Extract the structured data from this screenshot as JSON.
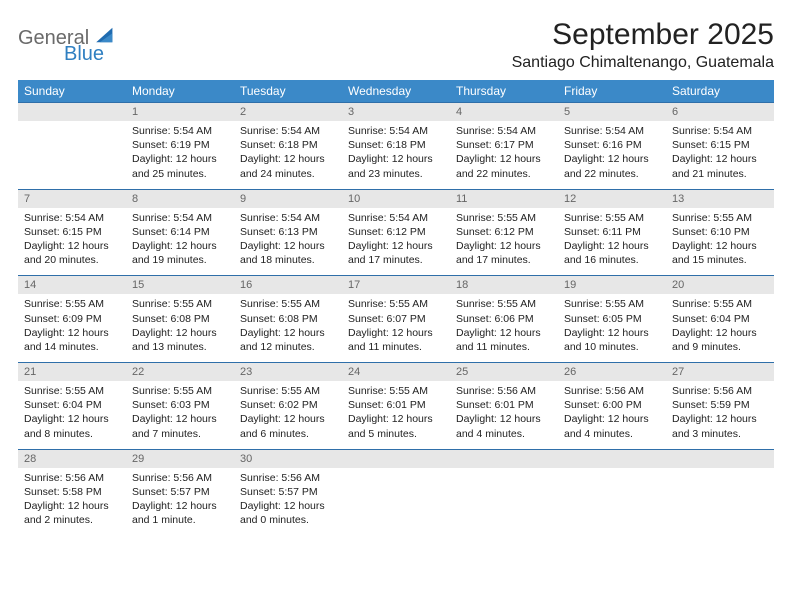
{
  "brand": {
    "general": "General",
    "blue": "Blue"
  },
  "title": "September 2025",
  "location": "Santiago Chimaltenango, Guatemala",
  "colors": {
    "header_bg": "#3b89c8",
    "header_text": "#ffffff",
    "daynum_bg": "#e7e7e7",
    "daynum_text": "#666666",
    "row_border": "#2f6fa9",
    "logo_gray": "#6a6a6a",
    "logo_blue": "#2f7fc1",
    "body_text": "#222222",
    "background": "#ffffff"
  },
  "columns": [
    "Sunday",
    "Monday",
    "Tuesday",
    "Wednesday",
    "Thursday",
    "Friday",
    "Saturday"
  ],
  "weeks": [
    [
      null,
      {
        "n": "1",
        "sr": "Sunrise: 5:54 AM",
        "ss": "Sunset: 6:19 PM",
        "d1": "Daylight: 12 hours",
        "d2": "and 25 minutes."
      },
      {
        "n": "2",
        "sr": "Sunrise: 5:54 AM",
        "ss": "Sunset: 6:18 PM",
        "d1": "Daylight: 12 hours",
        "d2": "and 24 minutes."
      },
      {
        "n": "3",
        "sr": "Sunrise: 5:54 AM",
        "ss": "Sunset: 6:18 PM",
        "d1": "Daylight: 12 hours",
        "d2": "and 23 minutes."
      },
      {
        "n": "4",
        "sr": "Sunrise: 5:54 AM",
        "ss": "Sunset: 6:17 PM",
        "d1": "Daylight: 12 hours",
        "d2": "and 22 minutes."
      },
      {
        "n": "5",
        "sr": "Sunrise: 5:54 AM",
        "ss": "Sunset: 6:16 PM",
        "d1": "Daylight: 12 hours",
        "d2": "and 22 minutes."
      },
      {
        "n": "6",
        "sr": "Sunrise: 5:54 AM",
        "ss": "Sunset: 6:15 PM",
        "d1": "Daylight: 12 hours",
        "d2": "and 21 minutes."
      }
    ],
    [
      {
        "n": "7",
        "sr": "Sunrise: 5:54 AM",
        "ss": "Sunset: 6:15 PM",
        "d1": "Daylight: 12 hours",
        "d2": "and 20 minutes."
      },
      {
        "n": "8",
        "sr": "Sunrise: 5:54 AM",
        "ss": "Sunset: 6:14 PM",
        "d1": "Daylight: 12 hours",
        "d2": "and 19 minutes."
      },
      {
        "n": "9",
        "sr": "Sunrise: 5:54 AM",
        "ss": "Sunset: 6:13 PM",
        "d1": "Daylight: 12 hours",
        "d2": "and 18 minutes."
      },
      {
        "n": "10",
        "sr": "Sunrise: 5:54 AM",
        "ss": "Sunset: 6:12 PM",
        "d1": "Daylight: 12 hours",
        "d2": "and 17 minutes."
      },
      {
        "n": "11",
        "sr": "Sunrise: 5:55 AM",
        "ss": "Sunset: 6:12 PM",
        "d1": "Daylight: 12 hours",
        "d2": "and 17 minutes."
      },
      {
        "n": "12",
        "sr": "Sunrise: 5:55 AM",
        "ss": "Sunset: 6:11 PM",
        "d1": "Daylight: 12 hours",
        "d2": "and 16 minutes."
      },
      {
        "n": "13",
        "sr": "Sunrise: 5:55 AM",
        "ss": "Sunset: 6:10 PM",
        "d1": "Daylight: 12 hours",
        "d2": "and 15 minutes."
      }
    ],
    [
      {
        "n": "14",
        "sr": "Sunrise: 5:55 AM",
        "ss": "Sunset: 6:09 PM",
        "d1": "Daylight: 12 hours",
        "d2": "and 14 minutes."
      },
      {
        "n": "15",
        "sr": "Sunrise: 5:55 AM",
        "ss": "Sunset: 6:08 PM",
        "d1": "Daylight: 12 hours",
        "d2": "and 13 minutes."
      },
      {
        "n": "16",
        "sr": "Sunrise: 5:55 AM",
        "ss": "Sunset: 6:08 PM",
        "d1": "Daylight: 12 hours",
        "d2": "and 12 minutes."
      },
      {
        "n": "17",
        "sr": "Sunrise: 5:55 AM",
        "ss": "Sunset: 6:07 PM",
        "d1": "Daylight: 12 hours",
        "d2": "and 11 minutes."
      },
      {
        "n": "18",
        "sr": "Sunrise: 5:55 AM",
        "ss": "Sunset: 6:06 PM",
        "d1": "Daylight: 12 hours",
        "d2": "and 11 minutes."
      },
      {
        "n": "19",
        "sr": "Sunrise: 5:55 AM",
        "ss": "Sunset: 6:05 PM",
        "d1": "Daylight: 12 hours",
        "d2": "and 10 minutes."
      },
      {
        "n": "20",
        "sr": "Sunrise: 5:55 AM",
        "ss": "Sunset: 6:04 PM",
        "d1": "Daylight: 12 hours",
        "d2": "and 9 minutes."
      }
    ],
    [
      {
        "n": "21",
        "sr": "Sunrise: 5:55 AM",
        "ss": "Sunset: 6:04 PM",
        "d1": "Daylight: 12 hours",
        "d2": "and 8 minutes."
      },
      {
        "n": "22",
        "sr": "Sunrise: 5:55 AM",
        "ss": "Sunset: 6:03 PM",
        "d1": "Daylight: 12 hours",
        "d2": "and 7 minutes."
      },
      {
        "n": "23",
        "sr": "Sunrise: 5:55 AM",
        "ss": "Sunset: 6:02 PM",
        "d1": "Daylight: 12 hours",
        "d2": "and 6 minutes."
      },
      {
        "n": "24",
        "sr": "Sunrise: 5:55 AM",
        "ss": "Sunset: 6:01 PM",
        "d1": "Daylight: 12 hours",
        "d2": "and 5 minutes."
      },
      {
        "n": "25",
        "sr": "Sunrise: 5:56 AM",
        "ss": "Sunset: 6:01 PM",
        "d1": "Daylight: 12 hours",
        "d2": "and 4 minutes."
      },
      {
        "n": "26",
        "sr": "Sunrise: 5:56 AM",
        "ss": "Sunset: 6:00 PM",
        "d1": "Daylight: 12 hours",
        "d2": "and 4 minutes."
      },
      {
        "n": "27",
        "sr": "Sunrise: 5:56 AM",
        "ss": "Sunset: 5:59 PM",
        "d1": "Daylight: 12 hours",
        "d2": "and 3 minutes."
      }
    ],
    [
      {
        "n": "28",
        "sr": "Sunrise: 5:56 AM",
        "ss": "Sunset: 5:58 PM",
        "d1": "Daylight: 12 hours",
        "d2": "and 2 minutes."
      },
      {
        "n": "29",
        "sr": "Sunrise: 5:56 AM",
        "ss": "Sunset: 5:57 PM",
        "d1": "Daylight: 12 hours",
        "d2": "and 1 minute."
      },
      {
        "n": "30",
        "sr": "Sunrise: 5:56 AM",
        "ss": "Sunset: 5:57 PM",
        "d1": "Daylight: 12 hours",
        "d2": "and 0 minutes."
      },
      null,
      null,
      null,
      null
    ]
  ]
}
